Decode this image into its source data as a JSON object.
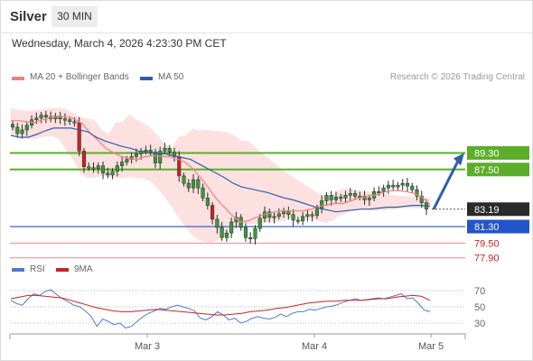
{
  "header": {
    "symbol": "Silver",
    "interval": "30 MIN",
    "datetime": "Wednesday, March 4, 2026 4:23:30 PM CET"
  },
  "legend": {
    "ma20_label": "MA 20 + Bollinger Bands",
    "ma50_label": "MA 50",
    "credit": "Research © 2026 Trading Central",
    "rsi_label": "RSI",
    "rsi_ma_label": "9MA"
  },
  "colors": {
    "ma20": "#f08080",
    "ma50": "#2e5fa8",
    "bollinger_fill": "#fde0e0",
    "candle": "#3a9a3a",
    "candle_down": "#cc2222",
    "resistance": "#5cad2a",
    "support": "#2255cc",
    "pivot_lower": "#f08888",
    "arrow": "#2e5fa8",
    "rsi": "#4a7bd0",
    "rsi_ma": "#cc2222"
  },
  "chart_data": [
    {
      "type": "candlestick",
      "x_ticks": [
        "Mar 3",
        "Mar 4",
        "Mar 5"
      ],
      "ylim": [
        76.5,
        96.5
      ],
      "series": [
        {
          "name": "MA 20 + Bollinger Bands"
        },
        {
          "name": "MA 50"
        }
      ],
      "close_path": [
        92.1,
        91.4,
        91.8,
        92.3,
        92.9,
        93.1,
        93.4,
        93.2,
        93.0,
        93.3,
        93.0,
        92.9,
        92.7,
        92.6,
        89.5,
        87.8,
        87.7,
        87.6,
        87.9,
        87.1,
        86.9,
        87.3,
        87.9,
        88.3,
        88.6,
        88.9,
        89.2,
        89.5,
        89.6,
        89.4,
        88.2,
        89.5,
        89.8,
        89.4,
        88.9,
        86.8,
        86.0,
        85.5,
        86.4,
        85.5,
        84.4,
        83.6,
        82.1,
        81.2,
        80.1,
        80.6,
        81.8,
        82.3,
        81.2,
        80.1,
        80.0,
        81.1,
        82.2,
        82.9,
        82.3,
        82.4,
        82.7,
        83.0,
        82.6,
        82.0,
        81.9,
        82.4,
        82.6,
        82.5,
        83.2,
        84.1,
        84.7,
        84.2,
        84.5,
        84.4,
        84.7,
        84.9,
        84.6,
        84.6,
        84.2,
        84.4,
        85.1,
        85.1,
        85.5,
        85.8,
        85.6,
        85.8,
        86.0,
        85.7,
        85.3,
        84.6,
        83.9,
        83.2
      ],
      "levels": {
        "resistance": [
          89.3,
          87.5
        ],
        "last": 83.19,
        "pivot": 81.3,
        "support": [
          79.5,
          77.9
        ]
      },
      "bollinger": {
        "upper": [
          94.2,
          94.0,
          93.9,
          93.9,
          94.0,
          94.1,
          94.2,
          94.2,
          94.0,
          93.6,
          93.2,
          93.0,
          92.9,
          91.8,
          91.3,
          92.6,
          92.7,
          93.5,
          92.9,
          92.5,
          92.0,
          91.2,
          90.3,
          89.7,
          91.1,
          91.2,
          91.9,
          91.7,
          91.8,
          91.7,
          91.6,
          91.5,
          91.2,
          90.6,
          90.6,
          89.9,
          89.2,
          88.7,
          88.0,
          87.4,
          86.9,
          86.4,
          85.9,
          85.4,
          84.9,
          84.5,
          84.6,
          85.3,
          85.4,
          85.3,
          85.2,
          85.1,
          85.0,
          84.9,
          84.8,
          84.7,
          84.6,
          84.6,
          84.5,
          84.5,
          84.4
        ],
        "lower": [
          91.2,
          91.0,
          90.9,
          90.8,
          90.9,
          91.1,
          91.1,
          90.7,
          89.5,
          88.5,
          87.0,
          86.6,
          86.6,
          86.8,
          86.7,
          86.6,
          86.6,
          86.7,
          86.6,
          86.5,
          86.2,
          85.5,
          84.5,
          83.5,
          82.3,
          81.3,
          80.3,
          79.8,
          79.6,
          79.6,
          80.0,
          80.5,
          81.1,
          81.5,
          81.6,
          81.6,
          81.7,
          81.8,
          81.8,
          81.9,
          82.2,
          82.2,
          82.2,
          82.1,
          81.9,
          81.7,
          81.9,
          82.5,
          82.8,
          83.0,
          83.1,
          83.1,
          83.0,
          83.1,
          83.1,
          83.2,
          83.3,
          83.3,
          83.3,
          83.3,
          83.4
        ]
      },
      "ma20": [
        92.8,
        92.8,
        92.7,
        92.6,
        92.9,
        93.1,
        93.3,
        93.2,
        93.0,
        92.5,
        91.5,
        90.7,
        89.8,
        89.3,
        88.9,
        88.7,
        88.6,
        88.9,
        89.0,
        88.9,
        88.9,
        88.7,
        88.3,
        87.6,
        86.6,
        85.5,
        84.3,
        83.4,
        82.5,
        81.8,
        81.9,
        82.3,
        82.6,
        82.8,
        83.0,
        83.0,
        83.0,
        83.0,
        83.2,
        83.5,
        83.7,
        83.8,
        83.8,
        84.1,
        84.4,
        84.6,
        84.7,
        85.0,
        85.2,
        85.2,
        85.1,
        84.9,
        84.5,
        83.7
      ],
      "ma50": [
        91.2,
        91.0,
        91.0,
        91.3,
        91.7,
        92.0,
        92.0,
        92.0,
        91.8,
        91.6,
        91.0,
        90.6,
        90.3,
        90.0,
        89.8,
        89.5,
        89.4,
        89.2,
        89.2,
        89.0,
        88.8,
        88.6,
        88.1,
        87.6,
        87.1,
        86.6,
        86.0,
        85.6,
        85.4,
        85.2,
        85.0,
        84.7,
        84.4,
        84.2,
        83.9,
        83.6,
        83.3,
        83.1,
        82.9,
        83.0,
        83.1,
        83.2,
        83.2,
        83.3,
        83.4,
        83.4,
        83.5,
        83.6,
        83.6,
        83.5
      ]
    },
    {
      "type": "line",
      "title": "RSI",
      "y_ticks": [
        70,
        50,
        30
      ],
      "ylim": [
        20,
        80
      ],
      "series": [
        {
          "name": "RSI",
          "values": [
            58,
            54,
            52,
            60,
            66,
            64,
            69,
            71,
            65,
            60,
            56,
            52,
            50,
            45,
            38,
            26,
            35,
            32,
            28,
            30,
            24,
            26,
            32,
            38,
            42,
            45,
            48,
            47,
            50,
            52,
            50,
            48,
            45,
            36,
            34,
            38,
            44,
            40,
            34,
            36,
            30,
            32,
            36,
            38,
            36,
            35,
            37,
            41,
            38,
            42,
            44,
            44,
            47,
            46,
            48,
            50,
            51,
            53,
            56,
            58,
            60,
            58,
            59,
            60,
            61,
            60,
            62,
            64,
            66,
            60,
            61,
            54,
            46,
            44
          ]
        },
        {
          "name": "9MA",
          "values": [
            60,
            62,
            64,
            64,
            63,
            62,
            61,
            58,
            55,
            52,
            49,
            47,
            45,
            44,
            44,
            45,
            46,
            47,
            46,
            45,
            44,
            43,
            42,
            41,
            40,
            40,
            41,
            42,
            44,
            45,
            46,
            48,
            49,
            51,
            53,
            55,
            56,
            57,
            57,
            58,
            58,
            58,
            59,
            60,
            60,
            62,
            63,
            64,
            63,
            58
          ]
        }
      ]
    }
  ]
}
